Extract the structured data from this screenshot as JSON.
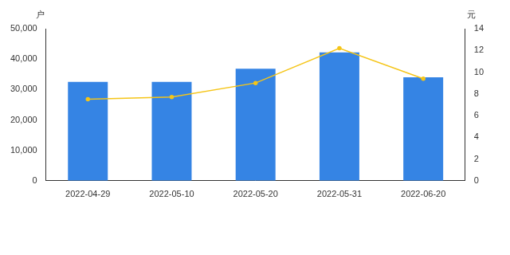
{
  "chart_data": {
    "type": "bar",
    "categories": [
      "2022-04-29",
      "2022-05-10",
      "2022-05-20",
      "2022-05-31",
      "2022-06-20"
    ],
    "ylabel": "户",
    "y2label": "元",
    "series": [
      {
        "type": "bar",
        "color": "#3584e4",
        "values": [
          32500,
          32500,
          36800,
          42200,
          34000
        ]
      },
      {
        "type": "line",
        "color": "#f5c518",
        "marker": "circle",
        "axis": "y2",
        "values": [
          7.5,
          7.7,
          9.0,
          12.2,
          9.4
        ]
      }
    ],
    "ylim": [
      0,
      50000
    ],
    "yticks": [
      0,
      {
        "value": 10000,
        "label": "10,000"
      },
      {
        "value": 20000,
        "label": "20,000"
      },
      {
        "value": 30000,
        "label": "30,000"
      },
      {
        "value": 40000,
        "label": "40,000"
      },
      {
        "value": 50000,
        "label": "50,000"
      }
    ],
    "y2lim": [
      0,
      14
    ],
    "y2ticks": [
      0,
      2,
      4,
      6,
      8,
      10,
      12,
      14
    ],
    "grid": false
  }
}
